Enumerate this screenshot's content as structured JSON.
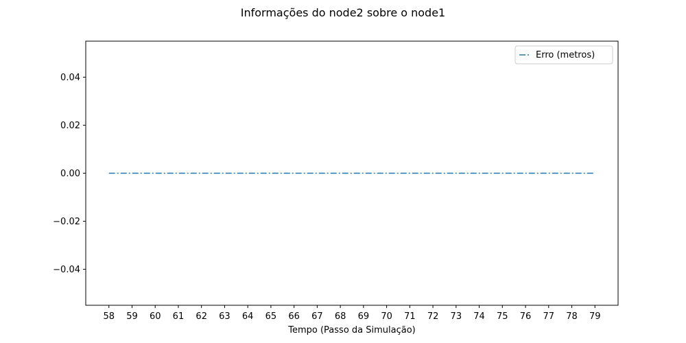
{
  "chart_data": {
    "type": "line",
    "title": "Informações do node2 sobre o node1",
    "xlabel": "Tempo (Passo da Simulação)",
    "ylabel": "",
    "x": [
      58,
      59,
      60,
      61,
      62,
      63,
      64,
      65,
      66,
      67,
      68,
      69,
      70,
      71,
      72,
      73,
      74,
      75,
      76,
      77,
      78,
      79
    ],
    "series": [
      {
        "name": "Erro (metros)",
        "values": [
          0,
          0,
          0,
          0,
          0,
          0,
          0,
          0,
          0,
          0,
          0,
          0,
          0,
          0,
          0,
          0,
          0,
          0,
          0,
          0,
          0,
          0
        ],
        "color": "#1f77b4",
        "linestyle": "dashdot"
      }
    ],
    "xlim": [
      57,
      80
    ],
    "ylim": [
      -0.055,
      0.055
    ],
    "xticks": [
      "58",
      "59",
      "60",
      "61",
      "62",
      "63",
      "64",
      "65",
      "66",
      "67",
      "68",
      "69",
      "70",
      "71",
      "72",
      "73",
      "74",
      "75",
      "76",
      "77",
      "78",
      "79"
    ],
    "yticks": [
      -0.04,
      -0.02,
      0.0,
      0.02,
      0.04
    ],
    "ytick_labels": [
      "−0.04",
      "−0.02",
      "0.00",
      "0.02",
      "0.04"
    ],
    "grid": false,
    "legend_position": "top-right"
  }
}
